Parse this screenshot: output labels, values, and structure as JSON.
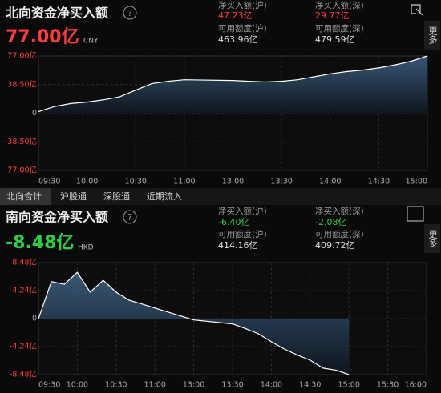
{
  "panels": [
    {
      "title": "北向资金净买入额",
      "amount": "77.00亿",
      "currency": "CNY",
      "stats": [
        {
          "label": "净买入额(沪)",
          "value": "47.23亿"
        },
        {
          "label": "净买入额(深)",
          "value": "29.77亿"
        },
        {
          "label": "可用额度(沪)",
          "value": "463.96亿"
        },
        {
          "label": "可用额度(深)",
          "value": "479.59亿"
        }
      ],
      "more": "更多"
    },
    {
      "title": "南向资金净买入额",
      "amount": "-8.48亿",
      "currency": "HKD",
      "stats": [
        {
          "label": "净买入额(沪)",
          "value": "-6.40亿"
        },
        {
          "label": "净买入额(深)",
          "value": "-2.08亿"
        },
        {
          "label": "可用额度(沪)",
          "value": "414.16亿"
        },
        {
          "label": "可用额度(深)",
          "value": "409.72亿"
        }
      ],
      "more": "更多"
    }
  ],
  "tabs": [
    "北向合计",
    "沪股通",
    "深股通",
    "近期流入"
  ],
  "chart_data": [
    {
      "type": "area",
      "color": "#ffffff",
      "fill": "#3d5f80",
      "grid": true,
      "x": [
        "09:30",
        "09:40",
        "09:50",
        "10:00",
        "10:10",
        "10:20",
        "10:30",
        "10:40",
        "10:50",
        "11:00",
        "13:00",
        "13:10",
        "13:20",
        "13:30",
        "13:40",
        "13:50",
        "14:00",
        "14:10",
        "14:20",
        "14:30",
        "14:40",
        "14:50",
        "15:00"
      ],
      "values": [
        2,
        9,
        13,
        15,
        18,
        22,
        31,
        40,
        43,
        45,
        44,
        43,
        42,
        43,
        45,
        49,
        53,
        56,
        58,
        61,
        65,
        70,
        77
      ],
      "ylim": [
        -77,
        77
      ],
      "yticks": [
        {
          "value": 77,
          "label": "77.00亿"
        },
        {
          "value": 38.5,
          "label": "38.50亿"
        },
        0,
        {
          "value": -38.5,
          "label": "-38.50亿"
        },
        {
          "value": -77,
          "label": "-77.00亿"
        }
      ],
      "xticks": [
        "09:30",
        "10:00",
        "10:30",
        "11:00",
        "13:00",
        "13:30",
        "14:00",
        "14:30",
        "15:00"
      ]
    },
    {
      "type": "area",
      "color": "#ffffff",
      "fill": "#3d5f80",
      "grid": true,
      "x": [
        "09:30",
        "09:40",
        "09:50",
        "10:00",
        "10:10",
        "10:20",
        "10:30",
        "10:40",
        "10:50",
        "11:00",
        "13:00",
        "13:10",
        "13:20",
        "13:30",
        "13:40",
        "13:50",
        "14:00",
        "14:10",
        "14:20",
        "14:30",
        "14:40",
        "14:50",
        "15:00"
      ],
      "values": [
        0,
        5.6,
        5.2,
        7.0,
        4.0,
        5.8,
        4.0,
        2.8,
        2.2,
        1.6,
        -0.2,
        -0.4,
        -0.6,
        -0.8,
        -1.5,
        -2.3,
        -3.5,
        -4.6,
        -5.5,
        -6.3,
        -7.5,
        -7.8,
        -8.48
      ],
      "ylim": [
        -8.48,
        8.48
      ],
      "yticks": [
        {
          "value": 8.48,
          "label": "8.48亿"
        },
        {
          "value": 4.24,
          "label": "4.24亿"
        },
        0,
        {
          "value": -4.24,
          "label": "-4.24亿"
        },
        {
          "value": -8.48,
          "label": "-8.48亿"
        }
      ],
      "xticks": [
        "09:30",
        "10:00",
        "10:30",
        "11:00",
        "13:00",
        "13:30",
        "14:00",
        "14:30",
        "15:00",
        "15:30",
        "16:00"
      ]
    }
  ]
}
